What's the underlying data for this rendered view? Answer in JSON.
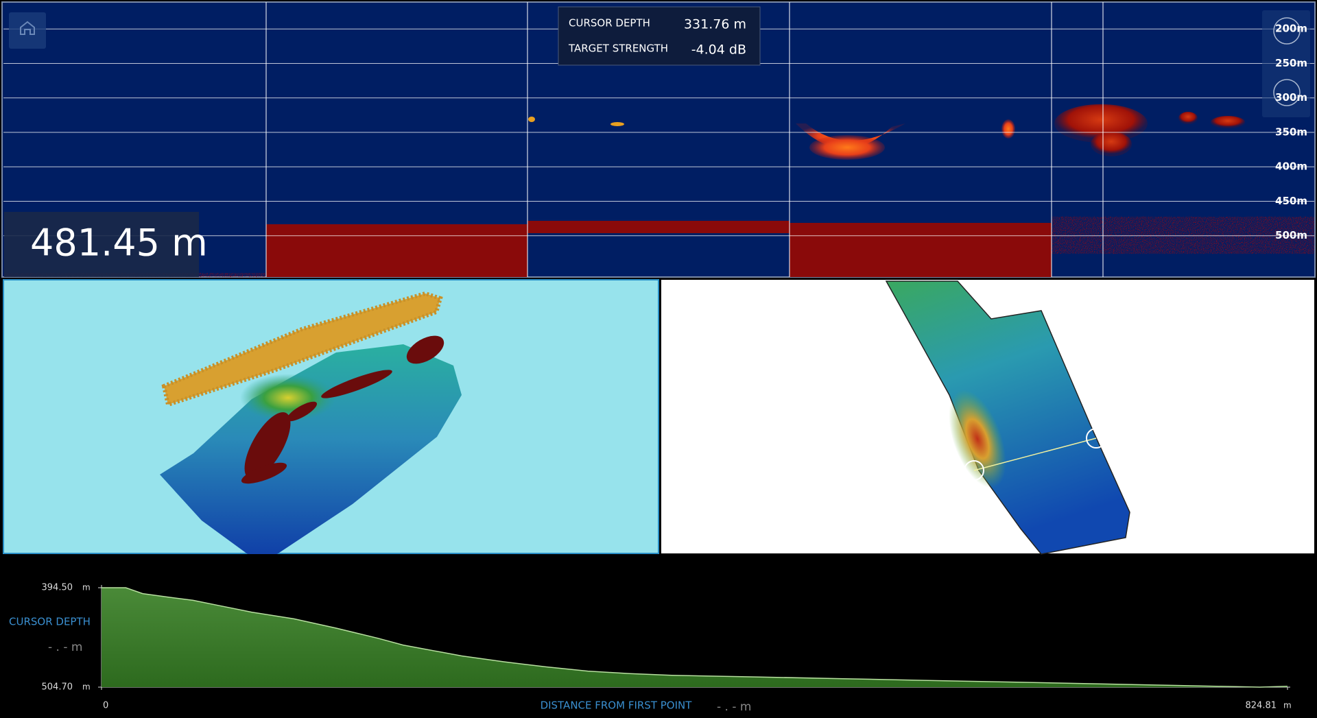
{
  "echogram": {
    "cursor_depth_label": "CURSOR DEPTH",
    "cursor_depth": "331.76 m",
    "target_strength_label": "TARGET STRENGTH",
    "target_strength": "-4.04 dB",
    "depth": "481.45 m",
    "ylim": [
      161,
      560
    ],
    "yticks": [
      {
        "value": 200,
        "label": "200m"
      },
      {
        "value": 250,
        "label": "250m"
      },
      {
        "value": 300,
        "label": "300m"
      },
      {
        "value": 350,
        "label": "350m"
      },
      {
        "value": 400,
        "label": "400m"
      },
      {
        "value": 450,
        "label": "450m"
      },
      {
        "value": 500,
        "label": "500m"
      }
    ]
  },
  "chart_data": {
    "type": "area",
    "y_label": "CURSOR DEPTH",
    "y_readout": "- . - m",
    "x_label": "DISTANCE FROM FIRST POINT",
    "x_readout": "- . - m",
    "y_unit": "m",
    "x_unit": "m",
    "color": "#3d7a2a",
    "xlim": [
      0,
      824.81
    ],
    "ylim": [
      504.7,
      394.5
    ],
    "xticks": [
      0,
      824.81
    ],
    "yticks": [
      {
        "value": 394.5,
        "label": "394.50"
      },
      {
        "value": 504.7,
        "label": "504.70"
      }
    ],
    "x": [
      0,
      16.9,
      28.6,
      46.1,
      63.7,
      81.2,
      104.6,
      133.8,
      163.0,
      192.2,
      209.7,
      250.6,
      279.8,
      309.0,
      338.2,
      367.4,
      396.6,
      455.1,
      513.5,
      571.9,
      630.3,
      688.7,
      747.1,
      805.5,
      824.81
    ],
    "values": [
      394.5,
      394.5,
      401.0,
      404.8,
      408.5,
      414.1,
      421.6,
      429.0,
      439.3,
      450.5,
      458.0,
      470.1,
      476.6,
      482.2,
      486.9,
      489.7,
      491.6,
      493.4,
      495.3,
      497.2,
      499.0,
      500.9,
      502.8,
      504.7,
      503.8
    ]
  }
}
